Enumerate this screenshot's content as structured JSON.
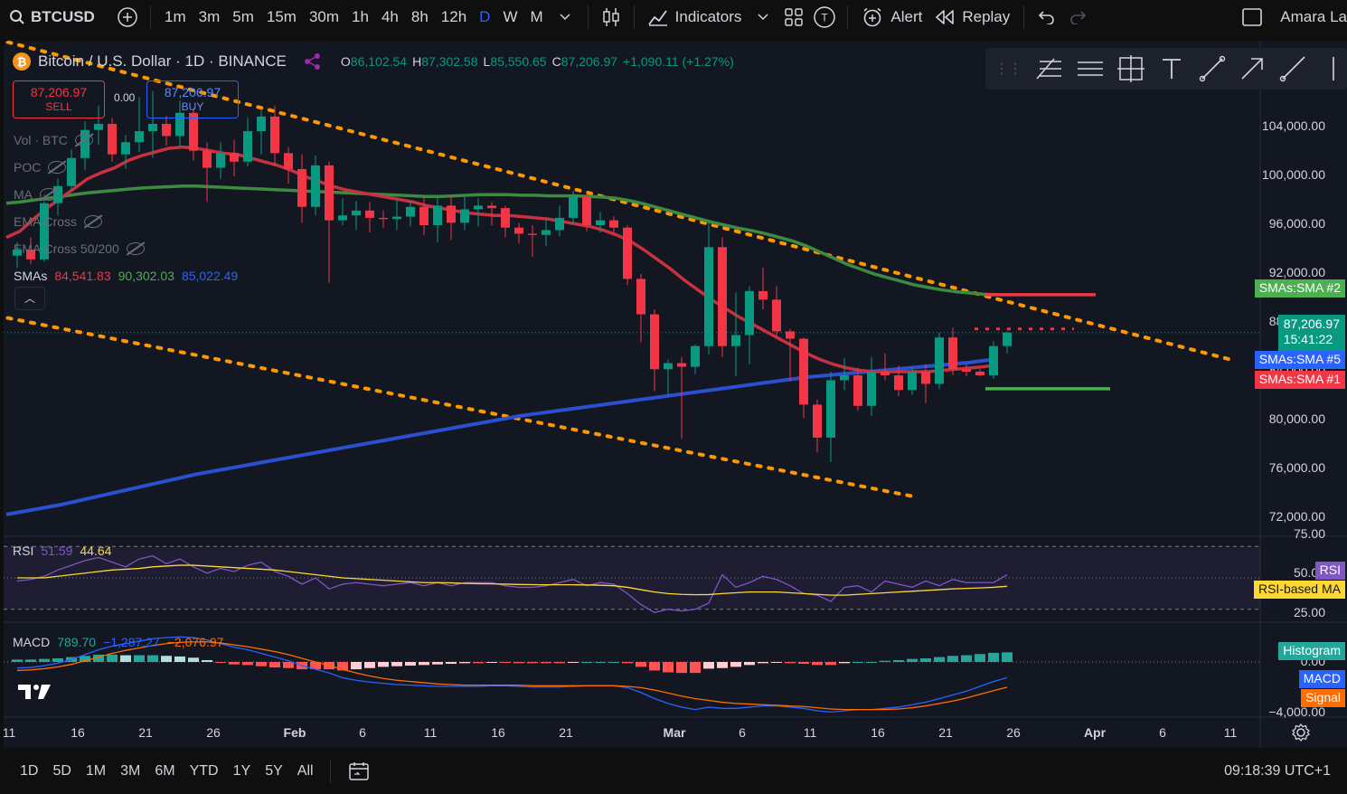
{
  "topbar": {
    "symbol": "BTCUSD",
    "timeframes": [
      "1m",
      "3m",
      "5m",
      "15m",
      "30m",
      "1h",
      "4h",
      "8h",
      "12h",
      "D",
      "W",
      "M"
    ],
    "active_timeframe": "D",
    "indicators_label": "Indicators",
    "alert_label": "Alert",
    "replay_label": "Replay",
    "user_name": "Amara La"
  },
  "legend": {
    "title": "Bitcoin / U.S. Dollar · 1D · BINANCE",
    "o_key": "O",
    "o": "86,102.54",
    "h_key": "H",
    "h": "87,302.58",
    "l_key": "L",
    "l": "85,550.65",
    "c_key": "C",
    "c": "87,206.97",
    "change": "+1,090.11 (+1.27%)"
  },
  "trade": {
    "sell_price": "87,206.97",
    "sell_label": "SELL",
    "buy_price": "87,206.97",
    "buy_label": "BUY",
    "spread": "0.00"
  },
  "indicators": [
    {
      "name": "Vol · BTC"
    },
    {
      "name": "POC"
    },
    {
      "name": "MA"
    },
    {
      "name": "EMA Cross"
    },
    {
      "name": "EMA Cross 50/200"
    }
  ],
  "smas": {
    "label": "SMAs",
    "v1": "84,541.83",
    "v2": "90,302.03",
    "v3": "85,022.49"
  },
  "price_axis": {
    "ticks": [
      "104,000.00",
      "100,000.00",
      "96,000.00",
      "92,000.00",
      "88,000.00",
      "84,000.00",
      "80,000.00",
      "76,000.00",
      "72,000.00"
    ],
    "current_price": "87,206.97",
    "countdown": "15:41:22",
    "sma2_label": "SMAs:SMA #2",
    "sma5_label": "SMAs:SMA #5",
    "sma1_label": "SMAs:SMA #1"
  },
  "rsi": {
    "label": "RSI",
    "value": "51.59",
    "ma_value": "44.64",
    "ticks": [
      "75.00",
      "50.00",
      "25.00"
    ],
    "rsi_tag": "RSI",
    "ma_tag": "RSI-based MA"
  },
  "macd": {
    "label": "MACD",
    "v1": "789.70",
    "v2": "−1,287.27",
    "v3": "−2,076.97",
    "ticks": [
      "0.00",
      "−4,000.00"
    ],
    "hist_tag": "Histogram",
    "macd_tag": "MACD",
    "signal_tag": "Signal"
  },
  "time_axis": [
    "11",
    "16",
    "21",
    "26",
    "Feb",
    "6",
    "11",
    "16",
    "21",
    "Mar",
    "6",
    "11",
    "16",
    "21",
    "26",
    "Apr",
    "6",
    "11"
  ],
  "bottombar": {
    "ranges": [
      "1D",
      "5D",
      "1M",
      "3M",
      "6M",
      "YTD",
      "1Y",
      "5Y",
      "All"
    ],
    "clock": "09:18:39 UTC+1"
  },
  "chart_data": {
    "type": "candlestick",
    "candles": [
      [
        93500,
        94600,
        92500,
        94000
      ],
      [
        94000,
        95000,
        92800,
        93200
      ],
      [
        93200,
        98500,
        93000,
        97800
      ],
      [
        97800,
        99800,
        96800,
        99200
      ],
      [
        99200,
        102200,
        98800,
        101500
      ],
      [
        101500,
        104500,
        100500,
        103800
      ],
      [
        103800,
        105800,
        102600,
        104300
      ],
      [
        104300,
        104800,
        101200,
        101800
      ],
      [
        101800,
        103400,
        100600,
        102800
      ],
      [
        102800,
        106500,
        102000,
        103700
      ],
      [
        103700,
        107000,
        101500,
        104300
      ],
      [
        104300,
        105000,
        102500,
        103300
      ],
      [
        103300,
        106200,
        102400,
        105200
      ],
      [
        105200,
        105600,
        101300,
        102100
      ],
      [
        102100,
        102800,
        97900,
        100700
      ],
      [
        100700,
        102800,
        99800,
        101900
      ],
      [
        101900,
        103000,
        100000,
        101200
      ],
      [
        101200,
        104800,
        100800,
        103700
      ],
      [
        103700,
        105400,
        101800,
        104900
      ],
      [
        104900,
        105800,
        100800,
        101900
      ],
      [
        101900,
        102400,
        99400,
        100600
      ],
      [
        100600,
        101800,
        96200,
        97500
      ],
      [
        97500,
        101700,
        96800,
        100900
      ],
      [
        100900,
        101200,
        91300,
        96400
      ],
      [
        96400,
        98200,
        96000,
        96800
      ],
      [
        96800,
        98000,
        95600,
        97200
      ],
      [
        97200,
        97900,
        95400,
        96600
      ],
      [
        96600,
        97200,
        95800,
        96500
      ],
      [
        96500,
        98200,
        95600,
        96700
      ],
      [
        96700,
        98000,
        95900,
        97500
      ],
      [
        97500,
        98300,
        95200,
        96000
      ],
      [
        96000,
        98500,
        94600,
        97600
      ],
      [
        97600,
        98500,
        94800,
        96200
      ],
      [
        96200,
        98300,
        95600,
        97300
      ],
      [
        97300,
        98200,
        95900,
        97600
      ],
      [
        97600,
        97900,
        96000,
        97400
      ],
      [
        97400,
        97600,
        95000,
        95800
      ],
      [
        95800,
        96200,
        94500,
        95300
      ],
      [
        95300,
        96000,
        93400,
        95200
      ],
      [
        95200,
        96600,
        94300,
        95600
      ],
      [
        95600,
        97600,
        95100,
        96600
      ],
      [
        96600,
        98800,
        96000,
        98300
      ],
      [
        98300,
        98700,
        95500,
        96000
      ],
      [
        96000,
        97100,
        95400,
        96400
      ],
      [
        96400,
        96700,
        95300,
        95800
      ],
      [
        95800,
        96000,
        91100,
        91600
      ],
      [
        91600,
        92000,
        86400,
        88700
      ],
      [
        88700,
        89100,
        82400,
        84200
      ],
      [
        84200,
        85000,
        82000,
        84700
      ],
      [
        84700,
        85200,
        78500,
        84400
      ],
      [
        84400,
        86200,
        83800,
        86100
      ],
      [
        86100,
        96300,
        85400,
        94200
      ],
      [
        94200,
        95000,
        85200,
        86100
      ],
      [
        86100,
        90500,
        83600,
        87000
      ],
      [
        87000,
        91000,
        84600,
        90600
      ],
      [
        90600,
        92500,
        89100,
        89900
      ],
      [
        89900,
        91000,
        86900,
        87300
      ],
      [
        87300,
        87500,
        83200,
        86700
      ],
      [
        86700,
        86800,
        80200,
        81300
      ],
      [
        81300,
        81700,
        77400,
        78600
      ],
      [
        78600,
        84000,
        76600,
        83300
      ],
      [
        83300,
        85100,
        82500,
        83700
      ],
      [
        83700,
        84300,
        80800,
        81200
      ],
      [
        81200,
        85200,
        80400,
        84000
      ],
      [
        84000,
        85500,
        83300,
        83700
      ],
      [
        83700,
        84500,
        82000,
        82500
      ],
      [
        82500,
        84400,
        82100,
        84000
      ],
      [
        84000,
        84600,
        81400,
        83000
      ],
      [
        83000,
        87200,
        82600,
        86800
      ],
      [
        86800,
        87600,
        83700,
        84200
      ],
      [
        84200,
        84600,
        83600,
        84000
      ],
      [
        84000,
        84200,
        83600,
        83700
      ],
      [
        83700,
        86500,
        83400,
        86100
      ],
      [
        86100,
        87300,
        85500,
        87200
      ]
    ],
    "sma1": [
      95000,
      95500,
      96500,
      97400,
      98200,
      99000,
      99800,
      100300,
      100700,
      101300,
      101700,
      102000,
      102300,
      102400,
      102300,
      102100,
      101900,
      101800,
      101500,
      101200,
      100900,
      100500,
      100000,
      99600,
      99200,
      98900,
      98700,
      98500,
      98300,
      98100,
      97900,
      97600,
      97400,
      97200,
      97000,
      96900,
      96800,
      96800,
      96700,
      96600,
      96500,
      96300,
      96100,
      95900,
      95600,
      95200,
      94700,
      94000,
      93200,
      92400,
      91500,
      90700,
      89900,
      89200,
      88500,
      87900,
      87300,
      86700,
      86100,
      85500,
      85000,
      84600,
      84300,
      84100,
      84000,
      84000,
      84000,
      84000,
      84000,
      84100,
      84200,
      84300,
      84400,
      84541
    ],
    "sma2": [
      97800,
      97900,
      98050,
      98200,
      98350,
      98500,
      98650,
      98750,
      98850,
      98950,
      99050,
      99100,
      99150,
      99200,
      99200,
      99150,
      99100,
      99050,
      99000,
      98950,
      98900,
      98850,
      98800,
      98750,
      98700,
      98650,
      98600,
      98550,
      98500,
      98450,
      98400,
      98350,
      98350,
      98400,
      98450,
      98500,
      98500,
      98500,
      98450,
      98450,
      98400,
      98400,
      98400,
      98350,
      98300,
      98200,
      98000,
      97750,
      97450,
      97150,
      96850,
      96550,
      96250,
      96000,
      95750,
      95550,
      95300,
      95000,
      94700,
      94300,
      93800,
      93300,
      92800,
      92400,
      92000,
      91700,
      91400,
      91100,
      90900,
      90700,
      90550,
      90450,
      90350,
      90302
    ],
    "sma3": [
      72300,
      72500,
      72700,
      72900,
      73100,
      73350,
      73600,
      73850,
      74100,
      74350,
      74600,
      74850,
      75100,
      75350,
      75600,
      75800,
      76000,
      76200,
      76400,
      76600,
      76800,
      77000,
      77200,
      77400,
      77600,
      77800,
      78000,
      78200,
      78400,
      78600,
      78800,
      79000,
      79200,
      79400,
      79600,
      79800,
      80000,
      80200,
      80400,
      80550,
      80700,
      80850,
      81000,
      81150,
      81300,
      81450,
      81600,
      81750,
      81900,
      82050,
      82200,
      82350,
      82500,
      82650,
      82800,
      82950,
      83100,
      83250,
      83400,
      83550,
      83650,
      83750,
      83850,
      83950,
      84050,
      84150,
      84250,
      84350,
      84450,
      84550,
      84650,
      84750,
      84900,
      85022
    ],
    "rsi": [
      48,
      49,
      51,
      55,
      58,
      61,
      63,
      60,
      57,
      62,
      64,
      59,
      62,
      57,
      53,
      56,
      54,
      58,
      60,
      54,
      51,
      46,
      50,
      43,
      46,
      47,
      46,
      45,
      46,
      47,
      45,
      47,
      45,
      47,
      47,
      47,
      45,
      44,
      44,
      45,
      47,
      49,
      45,
      47,
      46,
      40,
      33,
      28,
      30,
      29,
      30,
      34,
      52,
      44,
      47,
      51,
      49,
      45,
      40,
      39,
      35,
      44,
      45,
      41,
      48,
      46,
      44,
      48,
      45,
      49,
      47,
      47,
      47,
      52
    ],
    "rsi_ma": [
      50,
      50,
      50,
      51,
      52,
      53,
      54,
      55,
      55.5,
      56,
      57,
      57.5,
      58,
      58,
      57.5,
      57,
      56.5,
      56,
      55.5,
      55,
      54,
      53,
      52,
      51,
      50,
      49.5,
      49,
      48.5,
      48,
      47.5,
      47,
      47,
      46.8,
      46.5,
      46.3,
      46.2,
      46,
      45.8,
      45.7,
      45.6,
      45.6,
      45.6,
      45.5,
      45.3,
      45,
      44,
      42.5,
      41,
      40,
      39.5,
      39.3,
      39.4,
      40,
      40.5,
      41,
      41,
      41,
      40.5,
      40,
      39.5,
      39,
      39,
      39.5,
      40,
      40.5,
      41,
      41.5,
      42,
      42.5,
      43,
      43.3,
      43.6,
      44,
      44.64
    ],
    "macd": [
      -500,
      -450,
      -300,
      -100,
      200,
      600,
      1000,
      1300,
      1500,
      1700,
      1900,
      2000,
      2050,
      2000,
      1800,
      1500,
      1200,
      1000,
      700,
      400,
      100,
      -300,
      -600,
      -900,
      -1300,
      -1500,
      -1650,
      -1750,
      -1850,
      -1900,
      -1950,
      -2000,
      -2000,
      -2000,
      -2000,
      -1950,
      -1950,
      -2000,
      -2050,
      -2050,
      -2050,
      -2000,
      -1950,
      -1950,
      -1950,
      -2100,
      -2500,
      -3000,
      -3400,
      -3700,
      -3900,
      -3700,
      -3800,
      -3800,
      -3700,
      -3600,
      -3600,
      -3700,
      -3800,
      -4000,
      -4100,
      -4000,
      -3900,
      -3900,
      -3800,
      -3700,
      -3500,
      -3300,
      -3000,
      -2700,
      -2400,
      -2000,
      -1600,
      -1287
    ],
    "signal": [
      -700,
      -650,
      -550,
      -400,
      -200,
      100,
      400,
      700,
      950,
      1150,
      1350,
      1500,
      1600,
      1650,
      1650,
      1550,
      1400,
      1250,
      1050,
      850,
      600,
      300,
      0,
      -300,
      -600,
      -900,
      -1150,
      -1350,
      -1500,
      -1600,
      -1700,
      -1800,
      -1850,
      -1900,
      -1900,
      -1900,
      -1900,
      -1900,
      -1950,
      -1950,
      -1950,
      -1950,
      -1950,
      -1950,
      -1950,
      -2000,
      -2100,
      -2300,
      -2550,
      -2800,
      -3000,
      -3150,
      -3300,
      -3400,
      -3450,
      -3500,
      -3550,
      -3600,
      -3650,
      -3750,
      -3850,
      -3900,
      -3900,
      -3900,
      -3900,
      -3850,
      -3750,
      -3600,
      -3400,
      -3200,
      -2950,
      -2650,
      -2350,
      -2076
    ],
    "trendline_upper": [
      [
        0,
        110000
      ],
      [
        73,
        90300
      ],
      [
        88,
        85200
      ]
    ],
    "trendline_lower": [
      [
        0,
        88800
      ],
      [
        66,
        73800
      ]
    ]
  }
}
